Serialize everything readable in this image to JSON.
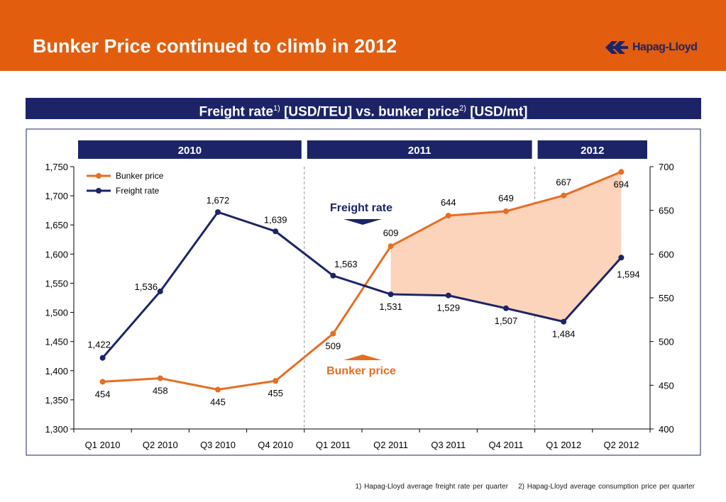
{
  "page": {
    "title": "Bunker Price continued to climb in 2012",
    "brand": "Hapag-Lloyd",
    "subtitle": {
      "part1": "Freight rate",
      "sup1": "1)",
      "part2": " [USD/TEU] vs. bunker price",
      "sup2": "2)",
      "part3": " [USD/mt]"
    },
    "footnotes": [
      "1) Hapag-Lloyd average freight rate per quarter",
      "2) Hapag-Lloyd average consumption price per quarter"
    ]
  },
  "colors": {
    "header_orange": "#e25d0e",
    "navy": "#1c2467",
    "bunker_orange": "#e66e22",
    "freight_navy": "#1c2467",
    "gap_fill": "#fcd3bb"
  },
  "chart_data": {
    "type": "line",
    "categories": [
      "Q1 2010",
      "Q2 2010",
      "Q3 2010",
      "Q4 2010",
      "Q1 2011",
      "Q2 2011",
      "Q3 2011",
      "Q4 2011",
      "Q1 2012",
      "Q2 2012"
    ],
    "year_groups": [
      {
        "label": "2010",
        "start": 0,
        "end": 3
      },
      {
        "label": "2011",
        "start": 4,
        "end": 7
      },
      {
        "label": "2012",
        "start": 8,
        "end": 9
      }
    ],
    "series": [
      {
        "name": "Bunker price",
        "axis": "right",
        "color": "#e66e22",
        "values": [
          454,
          458,
          445,
          455,
          509,
          609,
          644,
          649,
          667,
          694
        ],
        "labels": [
          "454",
          "458",
          "445",
          "455",
          "509",
          "609",
          "644",
          "649",
          "667",
          "694"
        ]
      },
      {
        "name": "Freight rate",
        "axis": "left",
        "color": "#1c2467",
        "values": [
          1422,
          1536,
          1672,
          1639,
          1563,
          1531,
          1529,
          1507,
          1484,
          1594
        ],
        "labels": [
          "1,422",
          "1,536",
          "1,672",
          "1,639",
          "1,563",
          "1,531",
          "1,529",
          "1,507",
          "1,484",
          "1,594"
        ]
      }
    ],
    "y_left": {
      "min": 1300,
      "max": 1750,
      "ticks": [
        "1,300",
        "1,350",
        "1,400",
        "1,450",
        "1,500",
        "1,550",
        "1,600",
        "1,650",
        "1,700",
        "1,750"
      ]
    },
    "y_right": {
      "min": 400,
      "max": 700,
      "ticks": [
        "400",
        "450",
        "500",
        "550",
        "600",
        "650",
        "700"
      ]
    },
    "annotations": [
      {
        "text": "Freight rate",
        "series": "Freight rate",
        "arrow": "down"
      },
      {
        "text": "Bunker price",
        "series": "Bunker price",
        "arrow": "up"
      }
    ],
    "shaded_gap": {
      "from_index": 5,
      "to_index": 9
    },
    "legend_position": "top-left",
    "grid": false
  }
}
